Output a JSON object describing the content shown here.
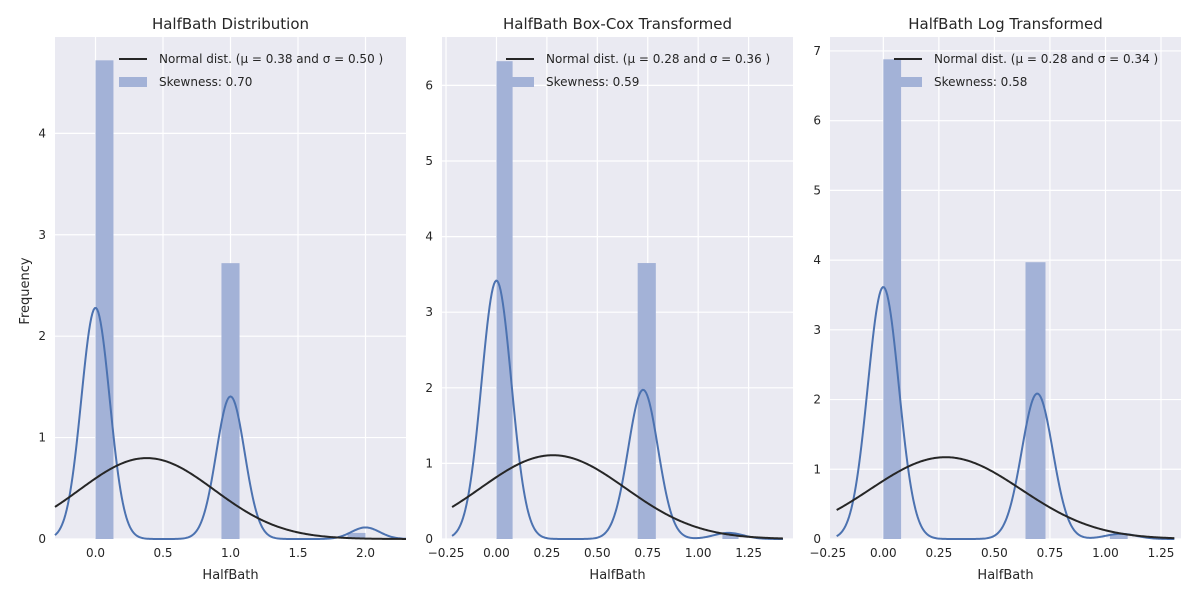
{
  "figure": {
    "ylabel": "Frequency"
  },
  "chart_data": [
    {
      "type": "histogram",
      "title": "HalfBath Distribution",
      "xlabel": "HalfBath",
      "ylabel": "Frequency",
      "xlim": [
        -0.3,
        2.3
      ],
      "ylim": [
        0,
        4.95
      ],
      "xticks": [
        0.0,
        0.5,
        1.0,
        1.5,
        2.0
      ],
      "xtick_labels": [
        "0.0",
        "0.5",
        "1.0",
        "1.5",
        "2.0"
      ],
      "yticks": [
        0,
        1,
        2,
        3,
        4
      ],
      "ytick_labels": [
        "0",
        "1",
        "2",
        "3",
        "4"
      ],
      "bars": [
        {
          "x0": 0.0,
          "x1": 0.133,
          "height": 4.72
        },
        {
          "x0": 0.933,
          "x1": 1.067,
          "height": 2.72
        },
        {
          "x0": 1.867,
          "x1": 2.0,
          "height": 0.06
        }
      ],
      "normal": {
        "mu": 0.38,
        "sigma": 0.5,
        "x_start": -0.3,
        "x_end": 2.3
      },
      "kde": {
        "x_start": -0.3,
        "x_end": 2.3,
        "components": [
          {
            "center": 0.0,
            "bandwidth": 0.105,
            "weight": 0.6
          },
          {
            "center": 1.0,
            "bandwidth": 0.105,
            "weight": 0.37
          },
          {
            "center": 2.0,
            "bandwidth": 0.105,
            "weight": 0.03
          }
        ]
      },
      "legend": {
        "position": "top-right",
        "line_text": "Normal dist. (μ =  0.38 and σ =  0.50 )",
        "patch_text": "Skewness: 0.70"
      },
      "grid": true
    },
    {
      "type": "histogram",
      "title": "HalfBath Box-Cox Transformed",
      "xlabel": "HalfBath",
      "ylabel": "",
      "xlim": [
        -0.27,
        1.47
      ],
      "ylim": [
        0,
        6.64
      ],
      "xticks": [
        -0.25,
        0.0,
        0.25,
        0.5,
        0.75,
        1.0,
        1.25
      ],
      "xtick_labels": [
        "−0.25",
        "0.00",
        "0.25",
        "0.50",
        "0.75",
        "1.00",
        "1.25"
      ],
      "yticks": [
        0,
        1,
        2,
        3,
        4,
        5,
        6
      ],
      "ytick_labels": [
        "0",
        "1",
        "2",
        "3",
        "4",
        "5",
        "6"
      ],
      "bars": [
        {
          "x0": 0.0,
          "x1": 0.08,
          "height": 6.32
        },
        {
          "x0": 0.7,
          "x1": 0.79,
          "height": 3.65
        },
        {
          "x0": 1.12,
          "x1": 1.2,
          "height": 0.08
        }
      ],
      "normal": {
        "mu": 0.28,
        "sigma": 0.36,
        "x_start": -0.22,
        "x_end": 1.42
      },
      "kde": {
        "x_start": -0.22,
        "x_end": 1.42,
        "components": [
          {
            "center": 0.0,
            "bandwidth": 0.074,
            "weight": 0.634
          },
          {
            "center": 0.727,
            "bandwidth": 0.074,
            "weight": 0.366
          },
          {
            "center": 1.15,
            "bandwidth": 0.074,
            "weight": 0.015
          }
        ]
      },
      "legend": {
        "position": "top-right",
        "line_text": "Normal dist. (μ =  0.28 and σ =  0.36 )",
        "patch_text": "Skewness: 0.59"
      },
      "grid": true
    },
    {
      "type": "histogram",
      "title": "HalfBath Log Transformed",
      "xlabel": "HalfBath",
      "ylabel": "",
      "xlim": [
        -0.24,
        1.34
      ],
      "ylim": [
        0,
        7.2
      ],
      "xticks": [
        -0.25,
        0.0,
        0.25,
        0.5,
        0.75,
        1.0,
        1.25
      ],
      "xtick_labels": [
        "−0.25",
        "0.00",
        "0.25",
        "0.50",
        "0.75",
        "1.00",
        "1.25"
      ],
      "yticks": [
        0,
        1,
        2,
        3,
        4,
        5,
        6,
        7
      ],
      "ytick_labels": [
        "0",
        "1",
        "2",
        "3",
        "4",
        "5",
        "6",
        "7"
      ],
      "bars": [
        {
          "x0": 0.0,
          "x1": 0.08,
          "height": 6.88
        },
        {
          "x0": 0.64,
          "x1": 0.73,
          "height": 3.97
        },
        {
          "x0": 1.02,
          "x1": 1.1,
          "height": 0.07
        }
      ],
      "normal": {
        "mu": 0.28,
        "sigma": 0.34,
        "x_start": -0.21,
        "x_end": 1.31
      },
      "kde": {
        "x_start": -0.21,
        "x_end": 1.31,
        "components": [
          {
            "center": 0.0,
            "bandwidth": 0.07,
            "weight": 0.634
          },
          {
            "center": 0.693,
            "bandwidth": 0.07,
            "weight": 0.366
          },
          {
            "center": 1.07,
            "bandwidth": 0.07,
            "weight": 0.013
          }
        ]
      },
      "legend": {
        "position": "top-right",
        "line_text": "Normal dist. (μ =  0.28 and σ =  0.34 )",
        "patch_text": "Skewness: 0.58"
      },
      "grid": true
    }
  ],
  "colors": {
    "axes_bg": "#eaeaf2",
    "grid": "#ffffff",
    "bar": "#a3b2d7",
    "kde": "#4c72b0",
    "normal": "#262626",
    "text": "#262626"
  }
}
